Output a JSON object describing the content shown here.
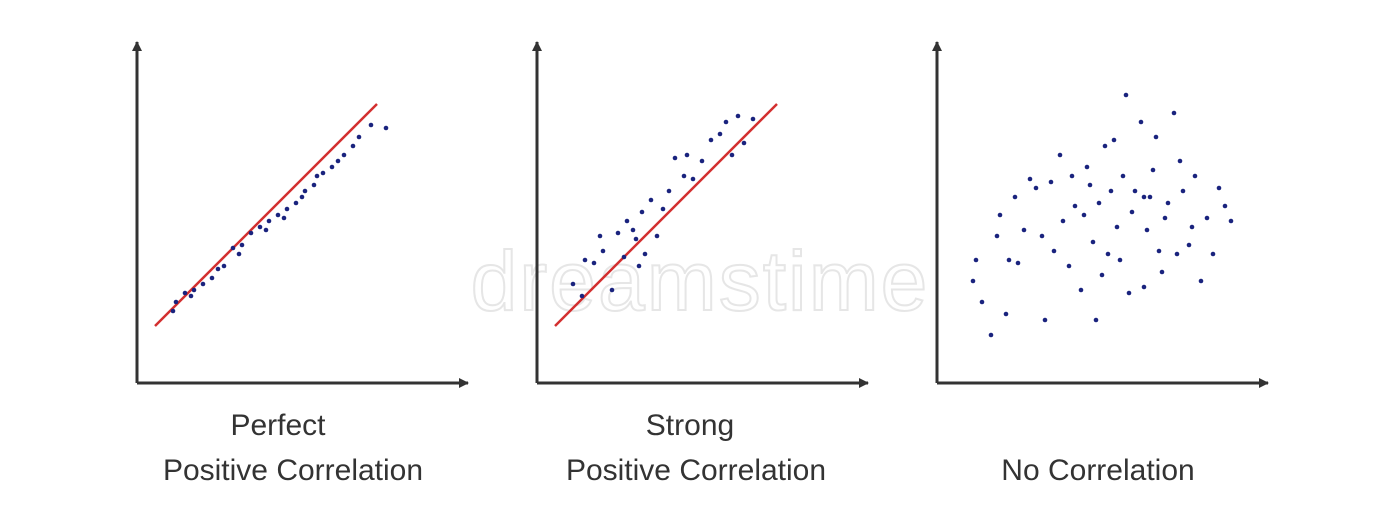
{
  "watermark": "dreamstime",
  "colors": {
    "axis": "#333333",
    "point": "#1a237e",
    "trend": "#d32f2f",
    "text": "#333333"
  },
  "chart_data": [
    {
      "type": "scatter",
      "title_lines": [
        "Perfect",
        "Positive Correlation"
      ],
      "xlim": [
        0,
        10
      ],
      "ylim": [
        0,
        10
      ],
      "trendline": {
        "x": [
          0.6,
          8.0
        ],
        "y": [
          1.9,
          9.3
        ]
      },
      "points": [
        [
          1.3,
          2.7
        ],
        [
          1.6,
          3.0
        ],
        [
          1.9,
          3.1
        ],
        [
          2.2,
          3.3
        ],
        [
          2.5,
          3.5
        ],
        [
          2.9,
          3.9
        ],
        [
          3.2,
          4.5
        ],
        [
          3.5,
          4.6
        ],
        [
          3.8,
          5.0
        ],
        [
          4.1,
          5.2
        ],
        [
          4.4,
          5.4
        ],
        [
          4.7,
          5.6
        ],
        [
          5.0,
          5.8
        ],
        [
          5.3,
          6.0
        ],
        [
          5.6,
          6.4
        ],
        [
          5.9,
          6.6
        ],
        [
          6.2,
          7.0
        ],
        [
          6.5,
          7.2
        ],
        [
          6.9,
          7.6
        ],
        [
          7.2,
          7.9
        ],
        [
          1.2,
          2.4
        ],
        [
          1.8,
          2.9
        ],
        [
          2.7,
          3.8
        ],
        [
          3.4,
          4.3
        ],
        [
          4.3,
          5.1
        ],
        [
          4.9,
          5.5
        ],
        [
          5.5,
          6.2
        ],
        [
          6.0,
          6.9
        ],
        [
          6.7,
          7.4
        ],
        [
          7.4,
          8.2
        ],
        [
          7.8,
          8.6
        ],
        [
          8.3,
          8.5
        ]
      ]
    },
    {
      "type": "scatter",
      "title_lines": [
        "Strong",
        "Positive Correlation"
      ],
      "xlim": [
        0,
        10
      ],
      "ylim": [
        0,
        10
      ],
      "trendline": {
        "x": [
          0.6,
          8.0
        ],
        "y": [
          1.9,
          9.3
        ]
      },
      "points": [
        [
          1.2,
          3.3
        ],
        [
          1.5,
          2.9
        ],
        [
          1.6,
          4.1
        ],
        [
          1.9,
          4.0
        ],
        [
          2.2,
          4.4
        ],
        [
          2.5,
          3.1
        ],
        [
          2.7,
          5.0
        ],
        [
          2.9,
          4.2
        ],
        [
          3.0,
          5.4
        ],
        [
          3.2,
          5.1
        ],
        [
          3.3,
          4.8
        ],
        [
          3.5,
          5.7
        ],
        [
          3.6,
          4.3
        ],
        [
          3.8,
          6.1
        ],
        [
          4.0,
          4.9
        ],
        [
          4.2,
          5.8
        ],
        [
          4.4,
          6.4
        ],
        [
          4.6,
          7.5
        ],
        [
          4.9,
          6.9
        ],
        [
          5.2,
          6.8
        ],
        [
          5.5,
          7.4
        ],
        [
          5.8,
          8.1
        ],
        [
          6.1,
          8.3
        ],
        [
          6.3,
          8.7
        ],
        [
          6.5,
          7.6
        ],
        [
          6.7,
          8.9
        ],
        [
          6.9,
          8.0
        ],
        [
          7.2,
          8.8
        ],
        [
          3.4,
          3.9
        ],
        [
          2.1,
          4.9
        ],
        [
          5.0,
          7.6
        ]
      ]
    },
    {
      "type": "scatter",
      "title_lines": [
        "No Correlation"
      ],
      "xlim": [
        0,
        10
      ],
      "ylim": [
        0,
        10
      ],
      "points": [
        [
          1.2,
          3.4
        ],
        [
          1.5,
          2.7
        ],
        [
          1.8,
          1.6
        ],
        [
          2.0,
          4.9
        ],
        [
          2.1,
          5.6
        ],
        [
          2.3,
          2.3
        ],
        [
          2.4,
          4.1
        ],
        [
          2.6,
          6.2
        ],
        [
          2.7,
          4.0
        ],
        [
          2.9,
          5.1
        ],
        [
          3.1,
          6.8
        ],
        [
          3.3,
          6.5
        ],
        [
          3.5,
          4.9
        ],
        [
          3.6,
          2.1
        ],
        [
          3.8,
          6.7
        ],
        [
          3.9,
          4.4
        ],
        [
          4.1,
          7.6
        ],
        [
          4.2,
          5.4
        ],
        [
          4.4,
          3.9
        ],
        [
          4.5,
          6.9
        ],
        [
          4.6,
          5.9
        ],
        [
          4.8,
          3.1
        ],
        [
          4.9,
          5.6
        ],
        [
          5.0,
          7.2
        ],
        [
          5.1,
          6.6
        ],
        [
          5.2,
          4.7
        ],
        [
          5.3,
          2.1
        ],
        [
          5.4,
          6.0
        ],
        [
          5.5,
          3.6
        ],
        [
          5.6,
          7.9
        ],
        [
          5.7,
          4.3
        ],
        [
          5.8,
          6.4
        ],
        [
          5.9,
          8.1
        ],
        [
          6.0,
          5.2
        ],
        [
          6.1,
          4.1
        ],
        [
          6.2,
          6.9
        ],
        [
          6.3,
          9.6
        ],
        [
          6.4,
          3.0
        ],
        [
          6.5,
          5.7
        ],
        [
          6.6,
          6.4
        ],
        [
          6.8,
          8.7
        ],
        [
          6.9,
          3.2
        ],
        [
          7.0,
          5.1
        ],
        [
          7.1,
          6.2
        ],
        [
          7.2,
          7.1
        ],
        [
          7.4,
          4.4
        ],
        [
          7.5,
          3.7
        ],
        [
          7.6,
          5.5
        ],
        [
          7.7,
          6.0
        ],
        [
          7.9,
          9.0
        ],
        [
          8.0,
          4.3
        ],
        [
          8.1,
          7.4
        ],
        [
          8.2,
          6.4
        ],
        [
          8.4,
          4.6
        ],
        [
          8.5,
          5.2
        ],
        [
          8.6,
          6.9
        ],
        [
          8.8,
          3.4
        ],
        [
          9.0,
          5.5
        ],
        [
          9.2,
          4.3
        ],
        [
          9.4,
          6.5
        ],
        [
          9.6,
          5.9
        ],
        [
          9.8,
          5.4
        ],
        [
          1.3,
          4.1
        ],
        [
          6.9,
          6.2
        ],
        [
          7.3,
          8.2
        ]
      ]
    }
  ]
}
